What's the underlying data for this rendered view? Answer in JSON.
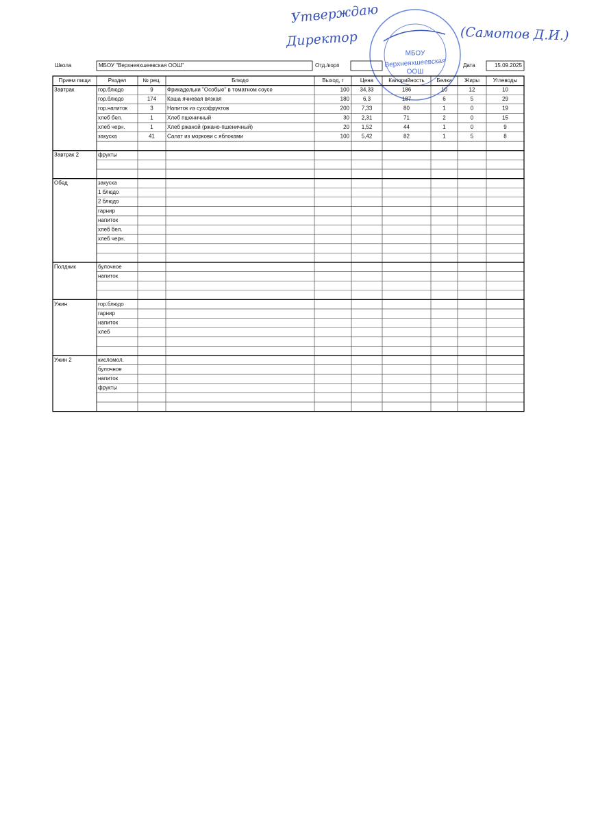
{
  "approval": {
    "line1": "Утверждаю",
    "line2": "Директор",
    "signature": "(Самотов Д.И.)"
  },
  "stamp": {
    "org": "МБОУ",
    "name": "Верхнеяхшеевская",
    "type": "ООШ"
  },
  "header": {
    "school_label": "Школа",
    "school": "МБОУ \"Верхнеяхшеевская ООШ\"",
    "dept_label": "Отд./корп",
    "date_label": "Дата",
    "date": "15.09.2025"
  },
  "columns": [
    "Прием пищи",
    "Раздел",
    "№ рец.",
    "Блюдо",
    "Выход, г",
    "Цена",
    "Калорийность",
    "Белки",
    "Жиры",
    "Углеводы"
  ],
  "meals": [
    {
      "name": "Завтрак",
      "rows": [
        [
          "гор.блюдо",
          "9",
          "Фрикадельки \"Особые\" в томатном соусе",
          "100",
          "34,33",
          "186",
          "10",
          "12",
          "10"
        ],
        [
          "гор.блюдо",
          "174",
          "Каша ячневая вязкая",
          "180",
          "6,3",
          "187",
          "6",
          "5",
          "29"
        ],
        [
          "гор.напиток",
          "3",
          "Напиток из  сухофруктов",
          "200",
          "7,33",
          "80",
          "1",
          "0",
          "19"
        ],
        [
          "хлеб бел.",
          "1",
          "Хлеб пшеничный",
          "30",
          "2,31",
          "71",
          "2",
          "0",
          "15"
        ],
        [
          "хлеб черн.",
          "1",
          "Хлеб ржаной (ржано-пшеничный)",
          "20",
          "1,52",
          "44",
          "1",
          "0",
          "9"
        ],
        [
          "закуска",
          "41",
          "Салат из моркови с яблоками",
          "100",
          "5,42",
          "82",
          "1",
          "5",
          "8"
        ]
      ]
    },
    {
      "name": "Завтрак 2",
      "rows": [
        [
          "фрукты"
        ]
      ]
    },
    {
      "name": "Обед",
      "rows": [
        [
          "закуска"
        ],
        [
          "1 блюдо"
        ],
        [
          "2 блюдо"
        ],
        [
          "гарнир"
        ],
        [
          "напиток"
        ],
        [
          "хлеб бел."
        ],
        [
          "хлеб черн."
        ]
      ]
    },
    {
      "name": "Полдник",
      "rows": [
        [
          "булочное"
        ],
        [
          "напиток"
        ]
      ]
    },
    {
      "name": "Ужин",
      "rows": [
        [
          "гор.блюдо"
        ],
        [
          "гарнир"
        ],
        [
          "напиток"
        ],
        [
          "хлеб"
        ]
      ]
    },
    {
      "name": "Ужин 2",
      "rows": [
        [
          "кисломол."
        ],
        [
          "булочное"
        ],
        [
          "напиток"
        ],
        [
          "фрукты"
        ]
      ]
    }
  ]
}
